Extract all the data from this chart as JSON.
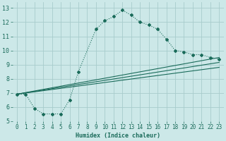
{
  "xlabel": "Humidex (Indice chaleur)",
  "bg_color": "#cce8e8",
  "grid_color": "#a8cccc",
  "line_color": "#1a6b5a",
  "xlim": [
    -0.5,
    23.5
  ],
  "ylim": [
    5,
    13.4
  ],
  "yticks": [
    5,
    6,
    7,
    8,
    9,
    10,
    11,
    12,
    13
  ],
  "xticks": [
    0,
    1,
    2,
    3,
    4,
    5,
    6,
    7,
    8,
    9,
    10,
    11,
    12,
    13,
    14,
    15,
    16,
    17,
    18,
    19,
    20,
    21,
    22,
    23
  ],
  "line1_x": [
    0,
    1,
    2,
    3,
    4,
    5,
    6,
    7,
    9,
    10,
    11,
    12,
    13,
    14,
    15,
    16,
    17,
    18,
    19,
    20,
    21,
    22,
    23
  ],
  "line1_y": [
    6.9,
    6.9,
    5.9,
    5.5,
    5.5,
    5.5,
    6.5,
    8.5,
    11.5,
    12.1,
    12.4,
    12.85,
    12.5,
    12.0,
    11.8,
    11.5,
    10.8,
    10.0,
    9.9,
    9.7,
    9.7,
    9.5,
    9.4
  ],
  "line2_x": [
    0,
    23
  ],
  "line2_y": [
    6.9,
    9.5
  ],
  "line3_x": [
    0,
    23
  ],
  "line3_y": [
    6.9,
    9.15
  ],
  "line4_x": [
    0,
    23
  ],
  "line4_y": [
    6.9,
    8.8
  ],
  "xlabel_fontsize": 6,
  "tick_fontsize": 5.5,
  "marker_size": 2.0,
  "line_width": 0.8
}
